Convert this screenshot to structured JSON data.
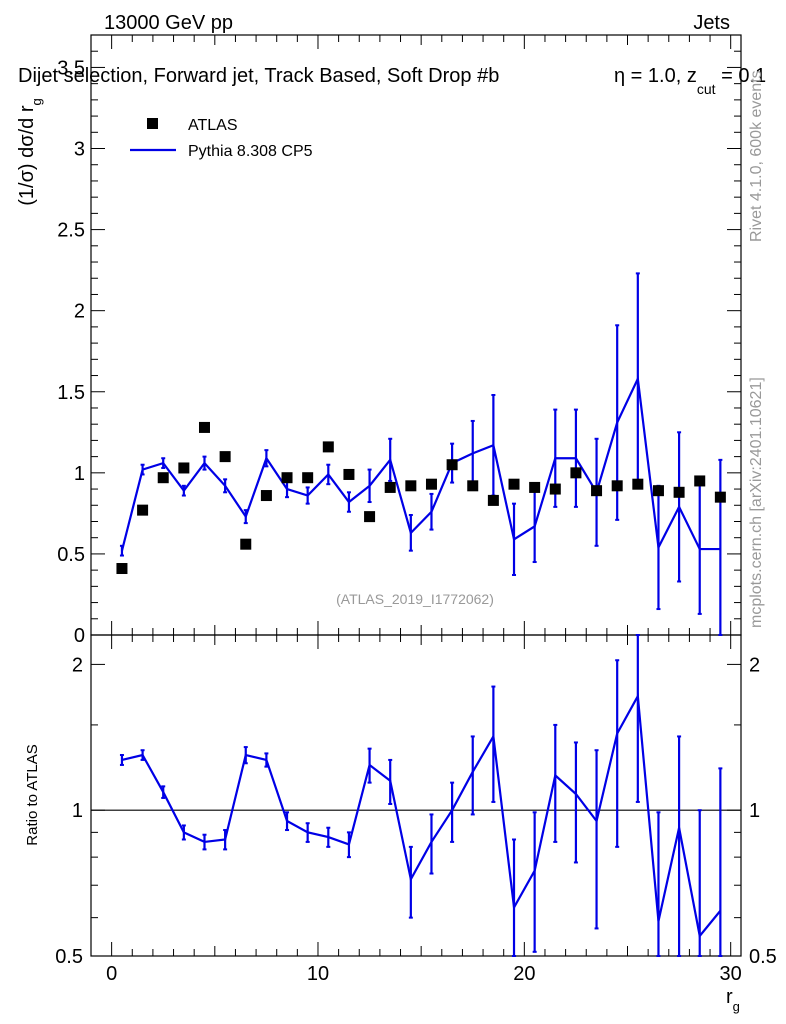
{
  "header": {
    "left": "13000 GeV pp",
    "right": "Jets"
  },
  "plot_title": "Dijet selection, Forward jet, Track Based, Soft Drop #b",
  "title_overlay": "η = 1.0, z",
  "title_sub": "cut",
  "title_tail": " = 0.1",
  "watermark": "(ATLAS_2019_I1772062)",
  "side_rivet": "Rivet 4.1.0,  600k events",
  "side_mcplots": "mcplots.cern.ch [arXiv:2401.10621]",
  "colors": {
    "mc": "#0000e6",
    "data": "#000000",
    "ref": "#000000"
  },
  "chart_data": [
    {
      "type": "scatter",
      "panel": "main",
      "title": "Dijet selection, Forward jet, Track Based, Soft Drop",
      "ylabel": "(1/σ) dσ/d r",
      "ylabel_sub": "g",
      "xlabel": "r",
      "xlabel_sub": "g",
      "xlim": [
        -1,
        30.5
      ],
      "ylim": [
        0,
        3.7
      ],
      "xticks": [
        "0",
        "10",
        "20",
        "30"
      ],
      "yticks": [
        "0",
        "0.5",
        "1",
        "1.5",
        "2",
        "2.5",
        "3",
        "3.5"
      ],
      "legend": {
        "position": "top-left",
        "entries": [
          "ATLAS",
          "Pythia 8.308 CP5"
        ]
      },
      "series": [
        {
          "name": "ATLAS",
          "style": "markers",
          "x": [
            0.5,
            1.5,
            2.5,
            3.5,
            4.5,
            5.5,
            6.5,
            7.5,
            8.5,
            9.5,
            10.5,
            11.5,
            12.5,
            13.5,
            14.5,
            15.5,
            16.5,
            17.5,
            18.5,
            19.5,
            20.5,
            21.5,
            22.5,
            23.5,
            24.5,
            25.5,
            26.5,
            27.5,
            28.5,
            29.5
          ],
          "values": [
            0.41,
            0.77,
            0.97,
            1.03,
            1.28,
            1.1,
            0.56,
            0.86,
            0.97,
            0.97,
            1.16,
            0.99,
            0.73,
            0.91,
            0.92,
            0.93,
            1.05,
            0.92,
            0.83,
            0.93,
            0.91,
            0.9,
            1.0,
            0.89,
            0.92,
            0.93,
            0.89,
            0.88,
            0.95,
            0.85
          ]
        },
        {
          "name": "Pythia 8.308 CP5",
          "style": "line",
          "x": [
            0.5,
            1.5,
            2.5,
            3.5,
            4.5,
            5.5,
            6.5,
            7.5,
            8.5,
            9.5,
            10.5,
            11.5,
            12.5,
            13.5,
            14.5,
            15.5,
            16.5,
            17.5,
            18.5,
            19.5,
            20.5,
            21.5,
            22.5,
            23.5,
            24.5,
            25.5,
            26.5,
            27.5,
            28.5,
            29.5
          ],
          "values": [
            0.52,
            1.02,
            1.06,
            0.89,
            1.06,
            0.92,
            0.73,
            1.09,
            0.9,
            0.86,
            0.99,
            0.82,
            0.92,
            1.08,
            0.63,
            0.76,
            1.06,
            1.12,
            1.17,
            0.59,
            0.67,
            1.09,
            1.09,
            0.88,
            1.31,
            1.58,
            0.54,
            0.79,
            0.53,
            0.53
          ],
          "errors": [
            0.03,
            0.03,
            0.03,
            0.03,
            0.04,
            0.04,
            0.04,
            0.05,
            0.05,
            0.05,
            0.06,
            0.06,
            0.1,
            0.13,
            0.11,
            0.11,
            0.12,
            0.2,
            0.31,
            0.22,
            0.22,
            0.3,
            0.3,
            0.33,
            0.6,
            0.65,
            0.38,
            0.46,
            0.4,
            0.55
          ]
        }
      ]
    },
    {
      "type": "line",
      "panel": "ratio",
      "ylabel": "Ratio to ATLAS",
      "xlabel": "r",
      "xlabel_sub": "g",
      "xlim": [
        -1,
        30.5
      ],
      "ylim": [
        0.5,
        2.3
      ],
      "yscale": "log",
      "yticks": [
        "0.5",
        "1",
        "2"
      ],
      "reference_line": 1,
      "series": [
        {
          "name": "Pythia 8.308 CP5 / ATLAS",
          "x": [
            0.5,
            1.5,
            2.5,
            3.5,
            4.5,
            5.5,
            6.5,
            7.5,
            8.5,
            9.5,
            10.5,
            11.5,
            12.5,
            13.5,
            14.5,
            15.5,
            16.5,
            17.5,
            18.5,
            19.5,
            20.5,
            21.5,
            22.5,
            23.5,
            24.5,
            25.5,
            26.5,
            27.5,
            28.5,
            29.5
          ],
          "values": [
            1.27,
            1.3,
            1.09,
            0.9,
            0.86,
            0.87,
            1.3,
            1.27,
            0.95,
            0.9,
            0.88,
            0.85,
            1.24,
            1.15,
            0.72,
            0.86,
            1.0,
            1.2,
            1.42,
            0.63,
            0.75,
            1.18,
            1.08,
            0.95,
            1.44,
            1.72,
            0.59,
            0.92,
            0.55,
            0.62
          ],
          "errors": [
            0.03,
            0.03,
            0.03,
            0.03,
            0.03,
            0.04,
            0.05,
            0.04,
            0.04,
            0.04,
            0.04,
            0.05,
            0.1,
            0.12,
            0.12,
            0.12,
            0.14,
            0.22,
            0.38,
            0.24,
            0.24,
            0.32,
            0.3,
            0.38,
            0.6,
            0.68,
            0.4,
            0.5,
            0.45,
            0.6
          ]
        }
      ]
    }
  ]
}
